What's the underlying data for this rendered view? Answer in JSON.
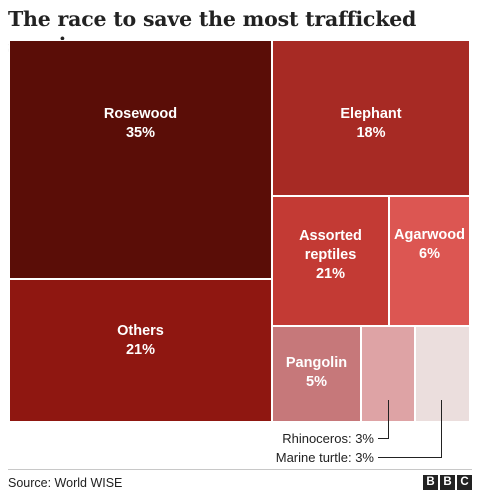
{
  "title": "The race to save the most trafficked species",
  "chart_data": {
    "type": "treemap",
    "unit": "%",
    "items": [
      {
        "name": "Rosewood",
        "value": 35,
        "label": "Rosewood\n35%",
        "color": "#5a0d07"
      },
      {
        "name": "Others",
        "value": 21,
        "label": "Others\n21%",
        "color": "#8f1711"
      },
      {
        "name": "Elephant",
        "value": 18,
        "label": "Elephant\n18%",
        "color": "#a72a24"
      },
      {
        "name": "Assorted reptiles",
        "value": 21,
        "label": "Assorted\nreptiles\n21%",
        "color": "#c33a34"
      },
      {
        "name": "Agarwood",
        "value": 6,
        "label": "Agarwood\n6%",
        "color": "#dc5652"
      },
      {
        "name": "Pangolin",
        "value": 5,
        "label": "Pangolin\n5%",
        "color": "#c6787a"
      },
      {
        "name": "Rhinoceros",
        "value": 3,
        "label": "",
        "color": "#dea3a5"
      },
      {
        "name": "Marine turtle",
        "value": 3,
        "label": "",
        "color": "#ebdedd"
      }
    ],
    "callouts": [
      {
        "name": "Rhinoceros",
        "text": "Rhinoceros: 3%"
      },
      {
        "name": "Marine turtle",
        "text": "Marine turtle: 3%"
      }
    ]
  },
  "footer": {
    "source": "Source: World WISE",
    "logo_letters": [
      "B",
      "B",
      "C"
    ]
  }
}
